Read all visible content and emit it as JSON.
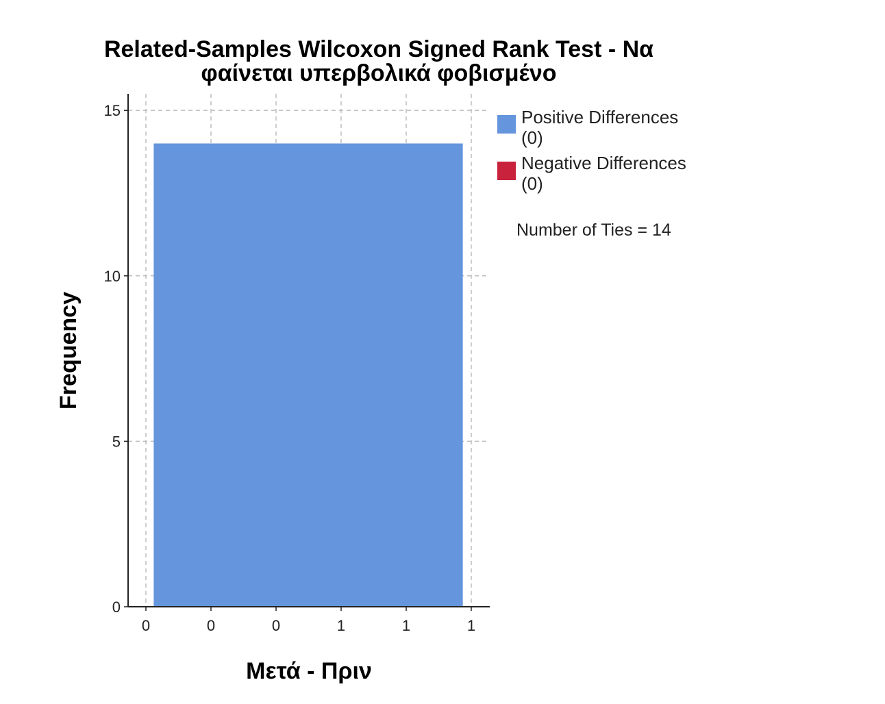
{
  "chart_data": {
    "type": "bar",
    "title_lines": [
      "Related-Samples Wilcoxon Signed Rank Test - Να",
      "φαίνεται υπερβολικά φοβισμένο"
    ],
    "xlabel": "Μετά - Πριν",
    "ylabel": "Frequency",
    "x_ticks": [
      "0",
      "0",
      "0",
      "1",
      "1",
      "1"
    ],
    "y_ticks": [
      0,
      5,
      10,
      15
    ],
    "ylim": [
      0,
      15.5
    ],
    "x_domain": [
      0,
      5
    ],
    "bars": [
      {
        "x_start": 0.12,
        "x_end": 4.87,
        "value": 14,
        "color": "#6495dd"
      }
    ],
    "grid": true,
    "legend_position": "right",
    "legend": [
      {
        "label_line1": "Positive Differences",
        "label_line2": "(0)",
        "color": "#6495dd"
      },
      {
        "label_line1": "Negative Differences",
        "label_line2": "(0)",
        "color": "#c8223c"
      }
    ],
    "annotation": "Number of Ties = 14"
  }
}
